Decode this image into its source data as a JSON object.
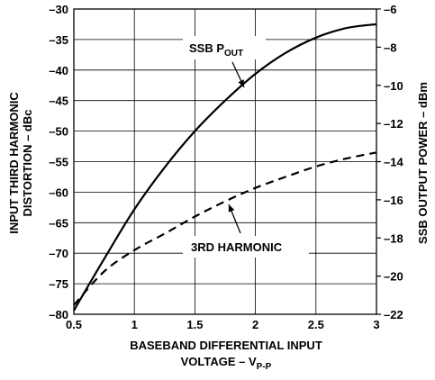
{
  "chart_data": {
    "type": "line",
    "title": "",
    "xlabel_line1": "BASEBAND DIFFERENTIAL INPUT",
    "xlabel_line2_prefix": "VOLTAGE – V",
    "xlabel_line2_sub": "P-P",
    "ylabel_left_line1": "INPUT THIRD HARMONIC",
    "ylabel_left_line2": "DISTORTION – dBc",
    "ylabel_right": "SSB OUTPUT POWER – dBm",
    "xlim": [
      0.5,
      3
    ],
    "ylim_left": [
      -80,
      -30
    ],
    "ylim_right": [
      -22,
      -6
    ],
    "x_ticks": [
      0.5,
      1,
      1.5,
      2,
      2.5,
      3
    ],
    "x_tick_labels": [
      "0.5",
      "1",
      "1.5",
      "2",
      "2.5",
      "3"
    ],
    "y_left_ticks": [
      -80,
      -75,
      -70,
      -65,
      -60,
      -55,
      -50,
      -45,
      -40,
      -35,
      -30
    ],
    "y_left_tick_labels": [
      "–80",
      "–75",
      "–70",
      "–65",
      "–60",
      "–55",
      "–50",
      "–45",
      "–40",
      "–35",
      "–30"
    ],
    "y_right_ticks": [
      -22,
      -20,
      -18,
      -16,
      -14,
      -12,
      -10,
      -8,
      -6
    ],
    "y_right_tick_labels": [
      "–22",
      "–20",
      "–18",
      "–16",
      "–14",
      "–12",
      "–10",
      "–8",
      "–6"
    ],
    "grid": true,
    "series": [
      {
        "name": "SSB POUT",
        "label_main": "SSB P",
        "label_sub": "OUT",
        "axis": "right",
        "style": "solid",
        "color": "#000000",
        "x": [
          0.5,
          0.75,
          1.0,
          1.25,
          1.5,
          1.75,
          2.0,
          2.25,
          2.5,
          2.75,
          3.0
        ],
        "y": [
          -21.8,
          -19.1,
          -16.5,
          -14.3,
          -12.4,
          -10.8,
          -9.4,
          -8.3,
          -7.5,
          -7.0,
          -6.8
        ]
      },
      {
        "name": "3RD HARMONIC",
        "label_main": "3RD HARMONIC",
        "label_sub": "",
        "axis": "left",
        "style": "dashed",
        "color": "#000000",
        "x": [
          0.5,
          0.75,
          1.0,
          1.25,
          1.5,
          1.75,
          2.0,
          2.25,
          2.5,
          2.75,
          3.0
        ],
        "y": [
          -78.5,
          -73.0,
          -69.5,
          -66.8,
          -64.0,
          -61.5,
          -59.3,
          -57.5,
          -55.8,
          -54.5,
          -53.5
        ]
      }
    ]
  }
}
